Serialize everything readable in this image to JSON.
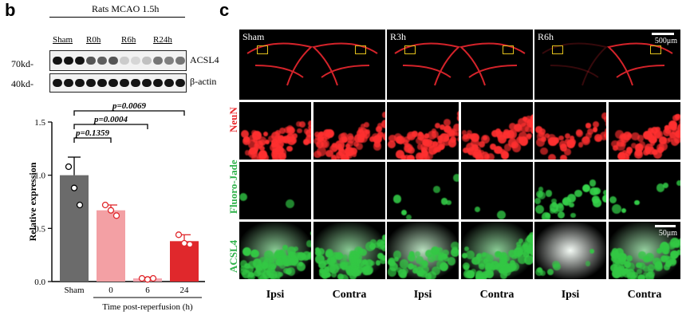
{
  "panel_b": {
    "letter": "b",
    "title": "Rats MCAO 1.5h",
    "lanes": [
      "Sham",
      "R0h",
      "R6h",
      "R24h"
    ],
    "blot_rows": [
      {
        "mw": "70kd-",
        "target": "ACSL4"
      },
      {
        "mw": "40kd-",
        "target": "β-actin"
      }
    ],
    "band_intensity": {
      "acsl4": [
        1.0,
        1.0,
        1.0,
        0.7,
        0.65,
        0.7,
        0.15,
        0.1,
        0.2,
        0.55,
        0.5,
        0.55
      ],
      "actin": [
        1,
        1,
        1,
        1,
        1,
        1,
        1,
        1,
        1,
        1,
        1,
        1
      ]
    },
    "significance": [
      {
        "p": "p=0.0069",
        "from": 0,
        "to": 3
      },
      {
        "p": "p=0.0004",
        "from": 0,
        "to": 2
      },
      {
        "p": "p=0.1359",
        "from": 0,
        "to": 1
      }
    ]
  },
  "chart_data": {
    "type": "bar",
    "categories": [
      "Sham",
      "0",
      "6",
      "24"
    ],
    "values": [
      1.0,
      0.67,
      0.03,
      0.38
    ],
    "errors": [
      0.17,
      0.05,
      0.01,
      0.06
    ],
    "points": [
      [
        1.08,
        0.88,
        0.72
      ],
      [
        0.72,
        0.67,
        0.62
      ],
      [
        0.03,
        0.02,
        0.03
      ],
      [
        0.44,
        0.36,
        0.35
      ]
    ],
    "colors": [
      "#6b6b6b",
      "#f3a0a4",
      "#f4a6b0",
      "#e0282c"
    ],
    "ylabel": "Relative expression",
    "xlabel": "Time post-reperfusion (h)",
    "ylim": [
      0,
      1.5
    ],
    "yticks": [
      "0.0",
      "0.5",
      "1.0",
      "1.5"
    ]
  },
  "panel_c": {
    "letter": "c",
    "column_titles": [
      "Sham",
      "R3h",
      "R6h"
    ],
    "scale_bar_top": "500μm",
    "scale_bar_bottom": "50μm",
    "row_labels": [
      "NeuN",
      "Fluoro-Jade",
      "ACSL4"
    ],
    "row_label_colors": [
      "#e8262a",
      "#2fb24a",
      "#2fb24a"
    ],
    "column_footers": [
      "Ipsi",
      "Contra",
      "Ipsi",
      "Contra",
      "Ipsi",
      "Contra"
    ],
    "signal_levels": {
      "neun": [
        1.0,
        1.0,
        1.0,
        1.0,
        0.6,
        1.0
      ],
      "fluoro_jade": [
        0.05,
        0.0,
        0.15,
        0.05,
        0.7,
        0.15
      ],
      "acsl4": [
        1.0,
        1.0,
        0.6,
        1.0,
        0.1,
        0.9
      ]
    }
  }
}
